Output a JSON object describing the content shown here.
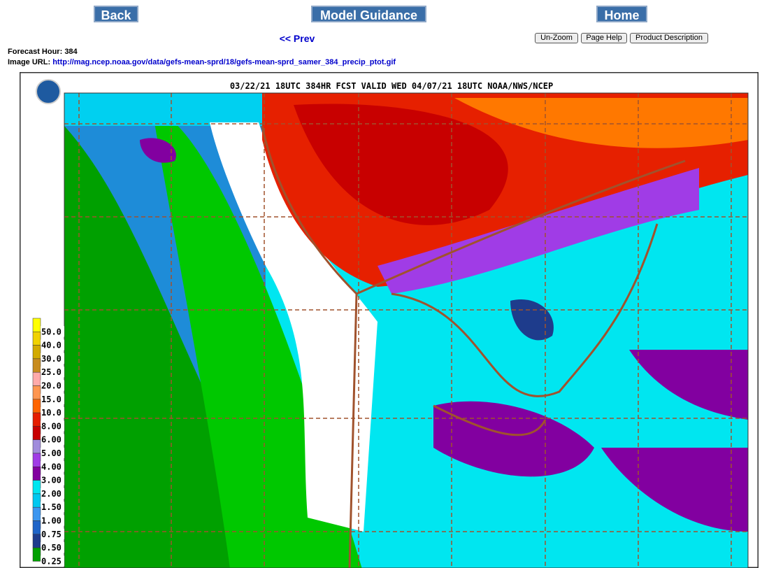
{
  "nav": {
    "back": "Back",
    "model_guidance": "Model Guidance",
    "home": "Home",
    "prev": "<< Prev"
  },
  "buttons": [
    "Un-Zoom",
    "Page Help",
    "Product Description"
  ],
  "info": {
    "forecast_hour_label": "Forecast Hour:",
    "forecast_hour": "384",
    "image_url_label": "Image URL:",
    "image_url": "http://mag.ncep.noaa.gov/data/gefs-mean-sprd/18/gefs-mean-sprd_samer_384_precip_ptot.gif"
  },
  "map": {
    "title": "03/22/21 18UTC 384HR FCST VALID WED 04/07/21 18UTC NOAA/NWS/NCEP",
    "legend": [
      {
        "label": "50.0",
        "color": "#ffff00"
      },
      {
        "label": "40.0",
        "color": "#f0d200"
      },
      {
        "label": "30.0",
        "color": "#d2aa00"
      },
      {
        "label": "25.0",
        "color": "#c88c1e"
      },
      {
        "label": "20.0",
        "color": "#ffaaaa"
      },
      {
        "label": "15.0",
        "color": "#ff9650"
      },
      {
        "label": "10.0",
        "color": "#ff6400"
      },
      {
        "label": "8.00",
        "color": "#e61e00"
      },
      {
        "label": "6.00",
        "color": "#c80000"
      },
      {
        "label": "5.00",
        "color": "#a08cdc"
      },
      {
        "label": "4.00",
        "color": "#a03ce6"
      },
      {
        "label": "3.00",
        "color": "#8200a0"
      },
      {
        "label": "2.00",
        "color": "#00e6f0"
      },
      {
        "label": "1.50",
        "color": "#00c8f0"
      },
      {
        "label": "1.00",
        "color": "#3c96f0"
      },
      {
        "label": "0.75",
        "color": "#1e64c8"
      },
      {
        "label": "0.50",
        "color": "#1e3c8c"
      },
      {
        "label": "0.25",
        "color": "#00a000"
      }
    ]
  }
}
